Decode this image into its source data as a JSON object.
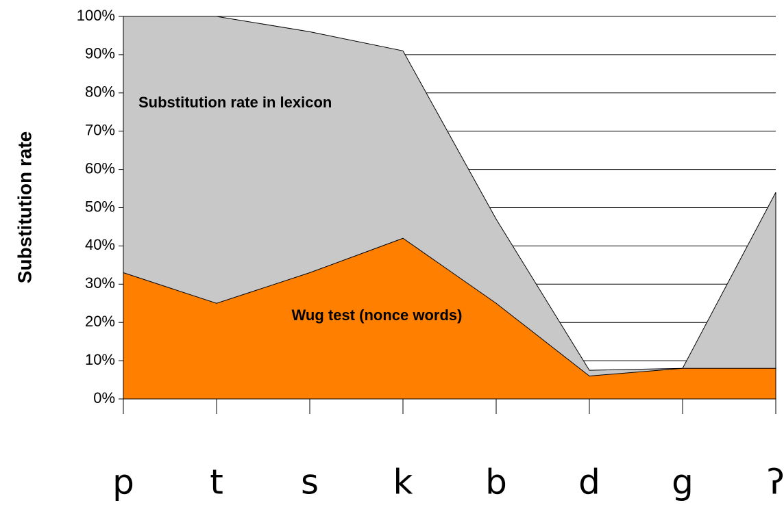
{
  "chart_data": {
    "type": "area",
    "y_label": "Substitution rate",
    "categories": [
      "p",
      "t",
      "s",
      "k",
      "b",
      "d",
      "g",
      "ʔ"
    ],
    "series": [
      {
        "name": "Substitution rate in lexicon",
        "color": "#c8c8c8",
        "values": [
          100,
          100,
          96,
          91,
          47,
          7.5,
          8,
          54
        ]
      },
      {
        "name": "Wug test (nonce words)",
        "color": "#ff8000",
        "values": [
          33,
          25,
          33,
          42,
          25,
          6,
          8,
          8
        ]
      }
    ],
    "ylim": [
      0,
      100
    ],
    "yticks": [
      {
        "value": 0,
        "label": "0%"
      },
      {
        "value": 10,
        "label": "10%"
      },
      {
        "value": 20,
        "label": "20%"
      },
      {
        "value": 30,
        "label": "30%"
      },
      {
        "value": 40,
        "label": "40%"
      },
      {
        "value": 50,
        "label": "50%"
      },
      {
        "value": 60,
        "label": "60%"
      },
      {
        "value": 70,
        "label": "70%"
      },
      {
        "value": 80,
        "label": "80%"
      },
      {
        "value": 90,
        "label": "90%"
      },
      {
        "value": 100,
        "label": "100%"
      }
    ],
    "grid": true
  }
}
